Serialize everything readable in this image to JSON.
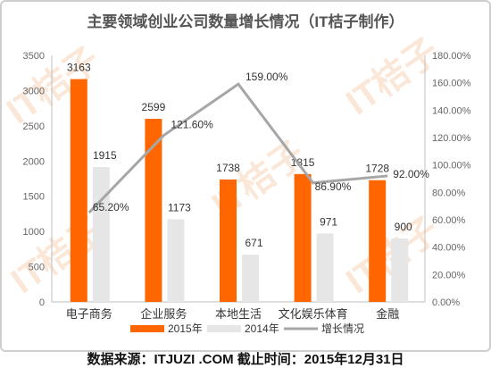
{
  "chart_data": {
    "type": "bar",
    "title": "主要领域创业公司数量增长情况（IT桔子制作）",
    "categories": [
      "电子商务",
      "企业服务",
      "本地生活",
      "文化娱乐体育",
      "金融"
    ],
    "series": [
      {
        "name": "2015年",
        "type": "bar",
        "axis": "left",
        "values": [
          3163,
          2599,
          1738,
          1815,
          1728
        ],
        "color": "#ff6600"
      },
      {
        "name": "2014年",
        "type": "bar",
        "axis": "left",
        "values": [
          1915,
          1173,
          671,
          971,
          900
        ],
        "color": "#e6e6e6"
      },
      {
        "name": "增长情况",
        "type": "line",
        "axis": "right",
        "values": [
          65.2,
          121.6,
          159.0,
          86.9,
          92.0
        ],
        "labels": [
          "65.20%",
          "121.60%",
          "159.00%",
          "86.90%",
          "92.00%"
        ],
        "color": "#a6a6a6"
      }
    ],
    "y_left": {
      "min": 0,
      "max": 3500,
      "ticks": [
        "0",
        "500",
        "1000",
        "1500",
        "2000",
        "2500",
        "3000",
        "3500"
      ]
    },
    "y_right": {
      "min": 0,
      "max": 180,
      "ticks": [
        "0.00%",
        "20.00%",
        "40.00%",
        "60.00%",
        "80.00%",
        "100.00%",
        "120.00%",
        "140.00%",
        "160.00%",
        "180.00%"
      ]
    },
    "legend_position": "bottom",
    "grid": false
  },
  "watermark": {
    "text": "IT桔子",
    "color": "#f7c9a6"
  },
  "footer": "数据来源：ITJUZI .COM  截止时间：2015年12月31日"
}
